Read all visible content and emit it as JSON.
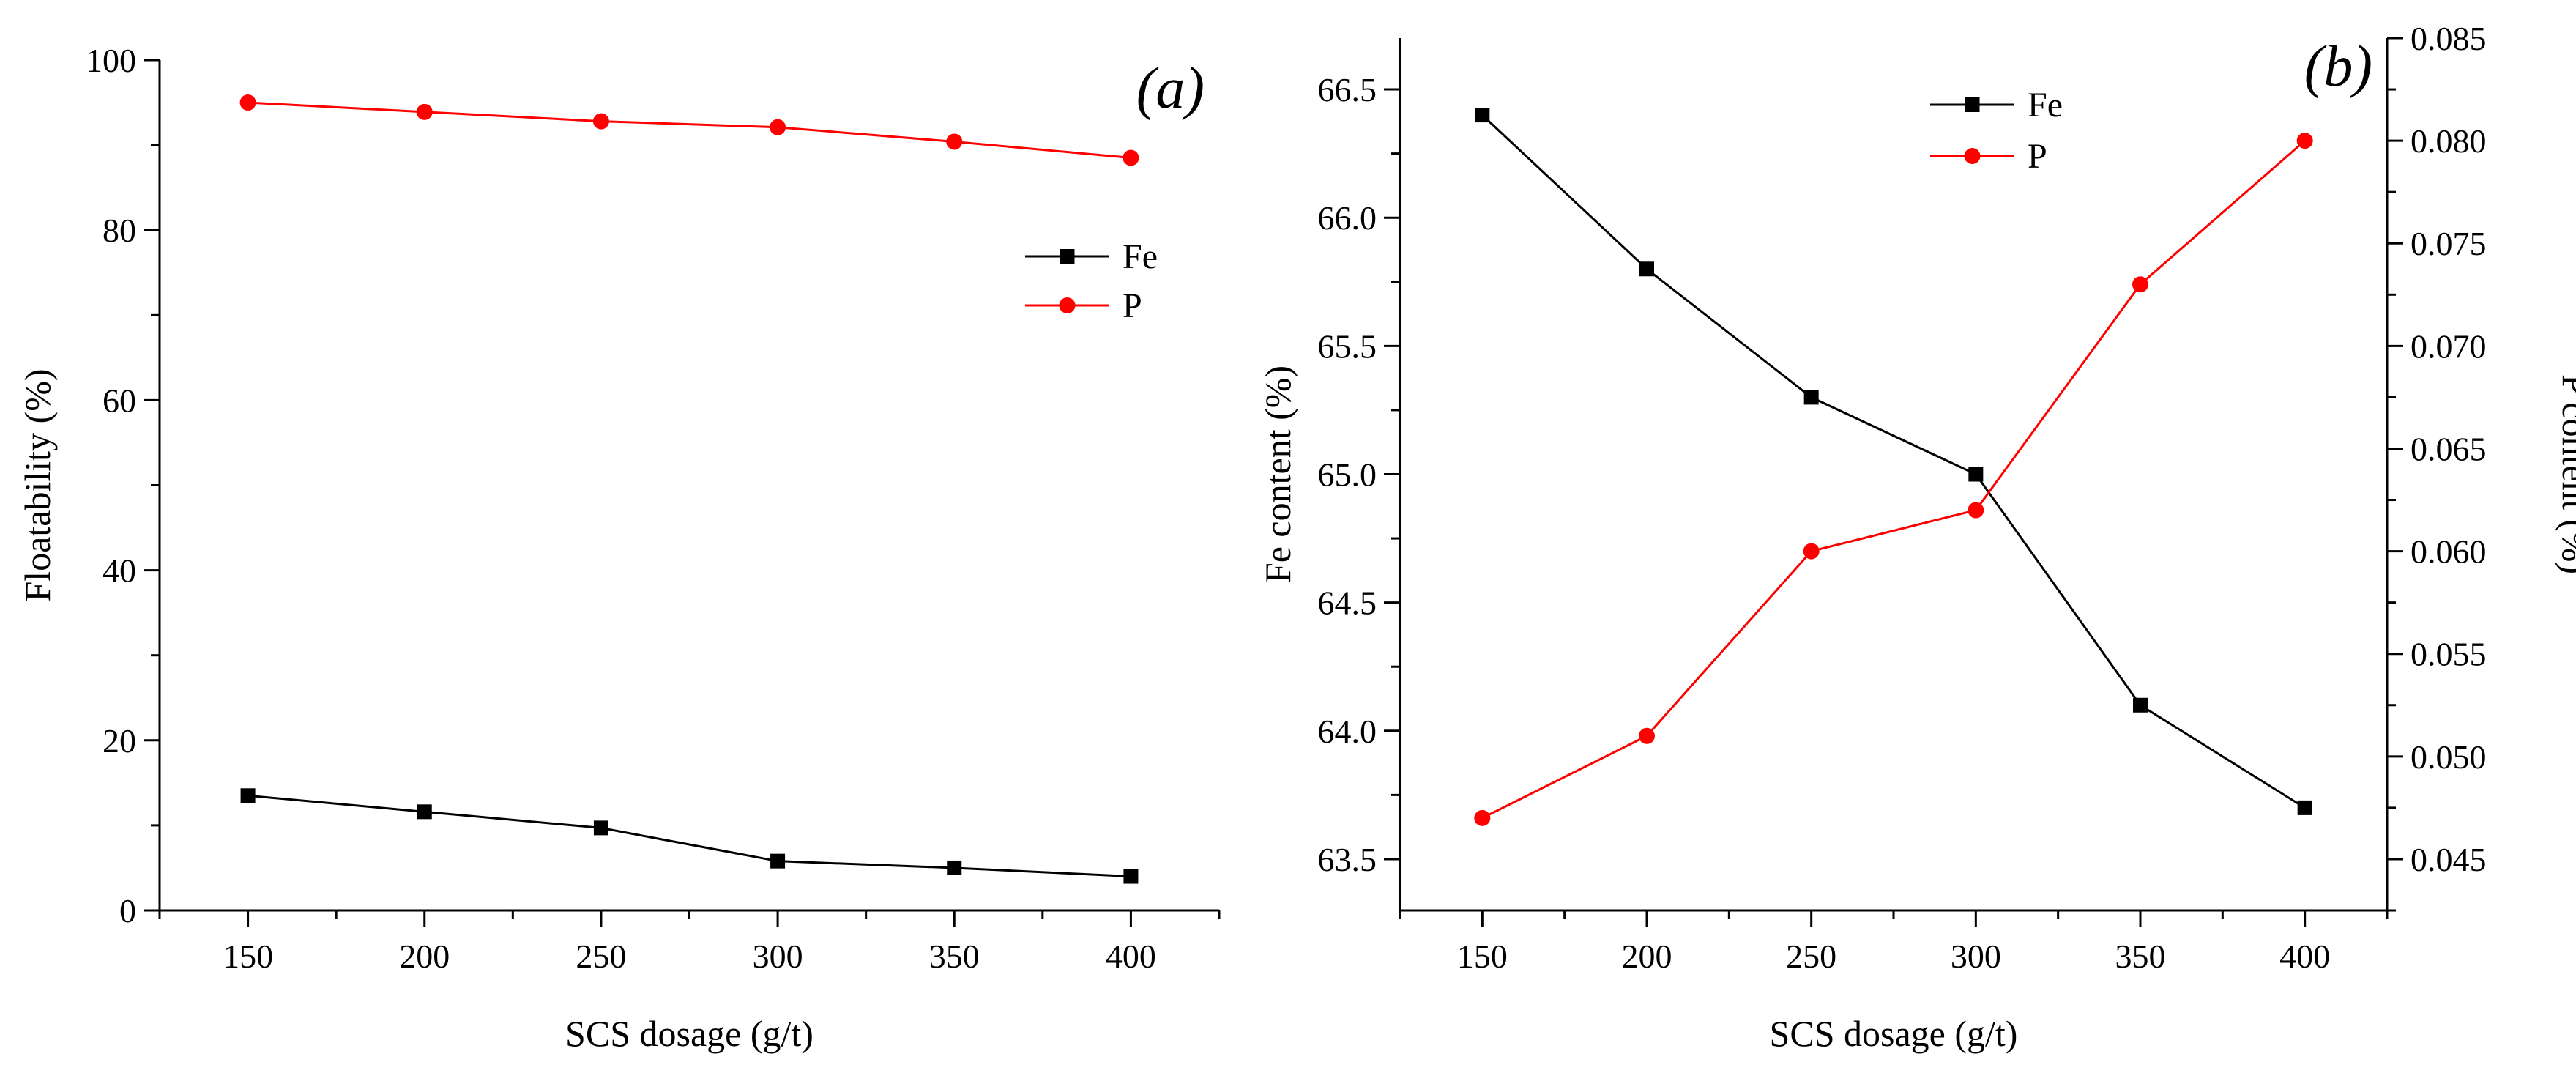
{
  "chart_data": [
    {
      "type": "line",
      "panel_label": "(a)",
      "x": [
        150,
        200,
        250,
        300,
        350,
        400
      ],
      "xlabel": "SCS dosage (g/t)",
      "ylabel": "Floatability (%)",
      "xlim": [
        125,
        425
      ],
      "xticks": [
        "150",
        "200",
        "250",
        "300",
        "350",
        "400"
      ],
      "ylim": [
        0,
        100
      ],
      "yticks": [
        "0",
        "20",
        "40",
        "60",
        "80",
        "100"
      ],
      "legend_position": "right",
      "series": [
        {
          "name": "Fe",
          "color": "#000000",
          "marker": "square",
          "values": [
            13.5,
            11.6,
            9.7,
            5.8,
            5.0,
            4.0
          ]
        },
        {
          "name": "P",
          "color": "#ff0000",
          "marker": "circle",
          "values": [
            95.0,
            93.9,
            92.8,
            92.1,
            90.4,
            88.5
          ]
        }
      ]
    },
    {
      "type": "line",
      "panel_label": "(b)",
      "x": [
        150,
        200,
        250,
        300,
        350,
        400
      ],
      "xlabel": "SCS dosage (g/t)",
      "ylabel": "Fe content (%)",
      "y2label": "P content (%)",
      "xlim": [
        125,
        425
      ],
      "xticks": [
        "150",
        "200",
        "250",
        "300",
        "350",
        "400"
      ],
      "ylim": [
        63.3,
        66.7
      ],
      "yticks": [
        "63.5",
        "64.0",
        "64.5",
        "65.0",
        "65.5",
        "66.0",
        "66.5"
      ],
      "y2lim": [
        0.0425,
        0.085
      ],
      "y2ticks": [
        "0.045",
        "0.050",
        "0.055",
        "0.060",
        "0.065",
        "0.070",
        "0.075",
        "0.080",
        "0.085"
      ],
      "legend_position": "top-center",
      "series": [
        {
          "name": "Fe",
          "color": "#000000",
          "marker": "square",
          "axis": "left",
          "values": [
            66.4,
            65.8,
            65.3,
            65.0,
            64.1,
            63.7
          ]
        },
        {
          "name": "P",
          "color": "#ff0000",
          "marker": "circle",
          "axis": "right",
          "values": [
            0.047,
            0.051,
            0.06,
            0.062,
            0.073,
            0.08
          ]
        }
      ]
    }
  ]
}
